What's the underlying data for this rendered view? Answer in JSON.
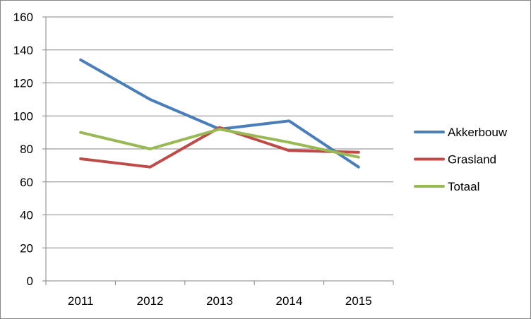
{
  "chart_data": {
    "type": "line",
    "title": "",
    "xlabel": "",
    "ylabel": "",
    "categories": [
      "2011",
      "2012",
      "2013",
      "2014",
      "2015"
    ],
    "y_ticks": [
      0,
      20,
      40,
      60,
      80,
      100,
      120,
      140,
      160
    ],
    "ylim": [
      0,
      160
    ],
    "grid": "horizontal major gridlines",
    "legend_position": "right",
    "series": [
      {
        "name": "Akkerbouw",
        "color": "#4A7EBB",
        "values": [
          134,
          110,
          92,
          97,
          69
        ]
      },
      {
        "name": "Grasland",
        "color": "#BE4B48",
        "values": [
          74,
          69,
          93,
          79,
          78
        ]
      },
      {
        "name": "Totaal",
        "color": "#98B954",
        "values": [
          90,
          80,
          92,
          84,
          75
        ]
      }
    ]
  }
}
